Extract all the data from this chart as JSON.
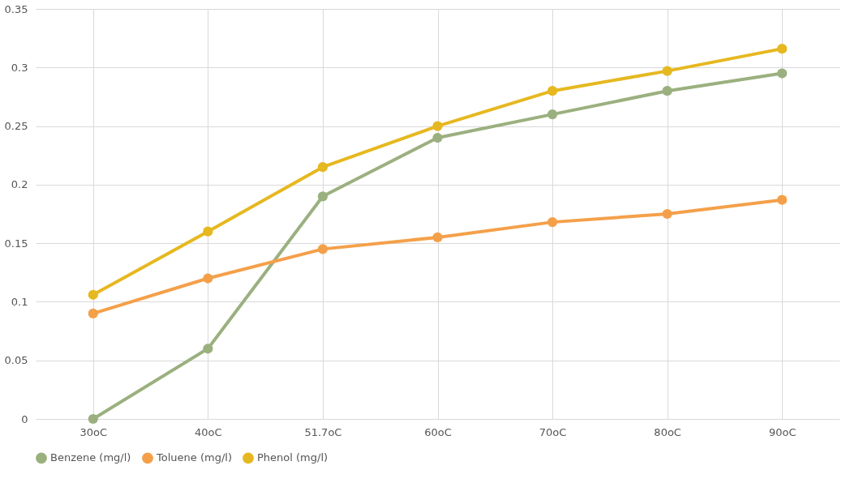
{
  "chart_data": {
    "type": "line",
    "categories": [
      "30oC",
      "40oC",
      "51.7oC",
      "60oC",
      "70oC",
      "80oC",
      "90oC"
    ],
    "series": [
      {
        "name": "Benzene (mg/l)",
        "color": "#9bb07f",
        "values": [
          0,
          0.06,
          0.19,
          0.24,
          0.26,
          0.28,
          0.295
        ]
      },
      {
        "name": "Toluene (mg/l)",
        "color": "#f4a04a",
        "values": [
          0.09,
          0.12,
          0.145,
          0.155,
          0.168,
          0.175,
          0.187
        ]
      },
      {
        "name": "Phenol (mg/l)",
        "color": "#e6b820",
        "values": [
          0.106,
          0.16,
          0.215,
          0.25,
          0.28,
          0.297,
          0.316
        ]
      }
    ],
    "ylim": [
      0,
      0.35
    ],
    "yticks": [
      0,
      0.05,
      0.1,
      0.15,
      0.2,
      0.25,
      0.3,
      0.35
    ],
    "grid": true,
    "legend": "bottom",
    "marker": "circle",
    "line_style": "solid"
  }
}
